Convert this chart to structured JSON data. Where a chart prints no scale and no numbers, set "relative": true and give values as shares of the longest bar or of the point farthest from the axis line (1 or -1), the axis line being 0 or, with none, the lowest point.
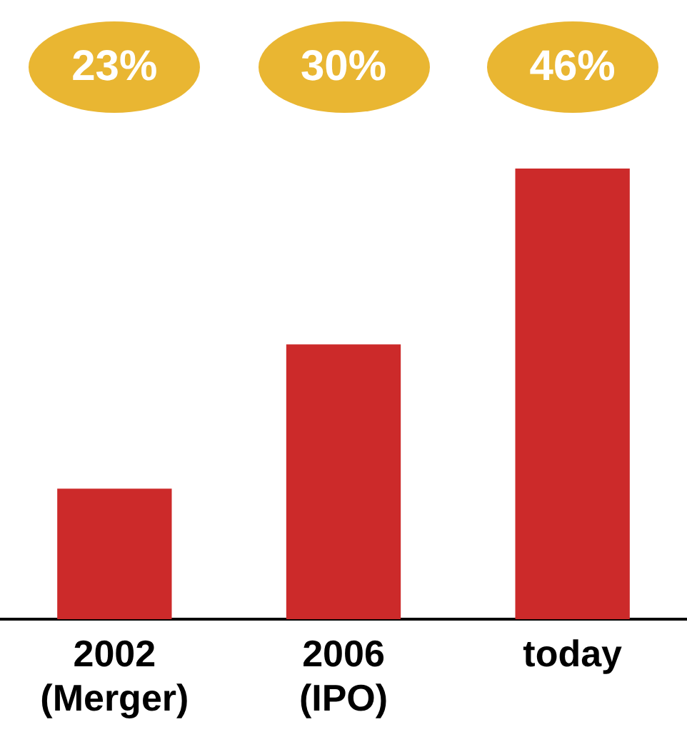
{
  "chart_data": {
    "type": "bar",
    "relative": true,
    "categories": [
      "2002\n(Merger)",
      "2006\n(IPO)",
      "today"
    ],
    "values": [
      0.29,
      0.61,
      1
    ],
    "color": "#cc2a2a",
    "annotations": [
      "23%",
      "30%",
      "46%"
    ]
  }
}
